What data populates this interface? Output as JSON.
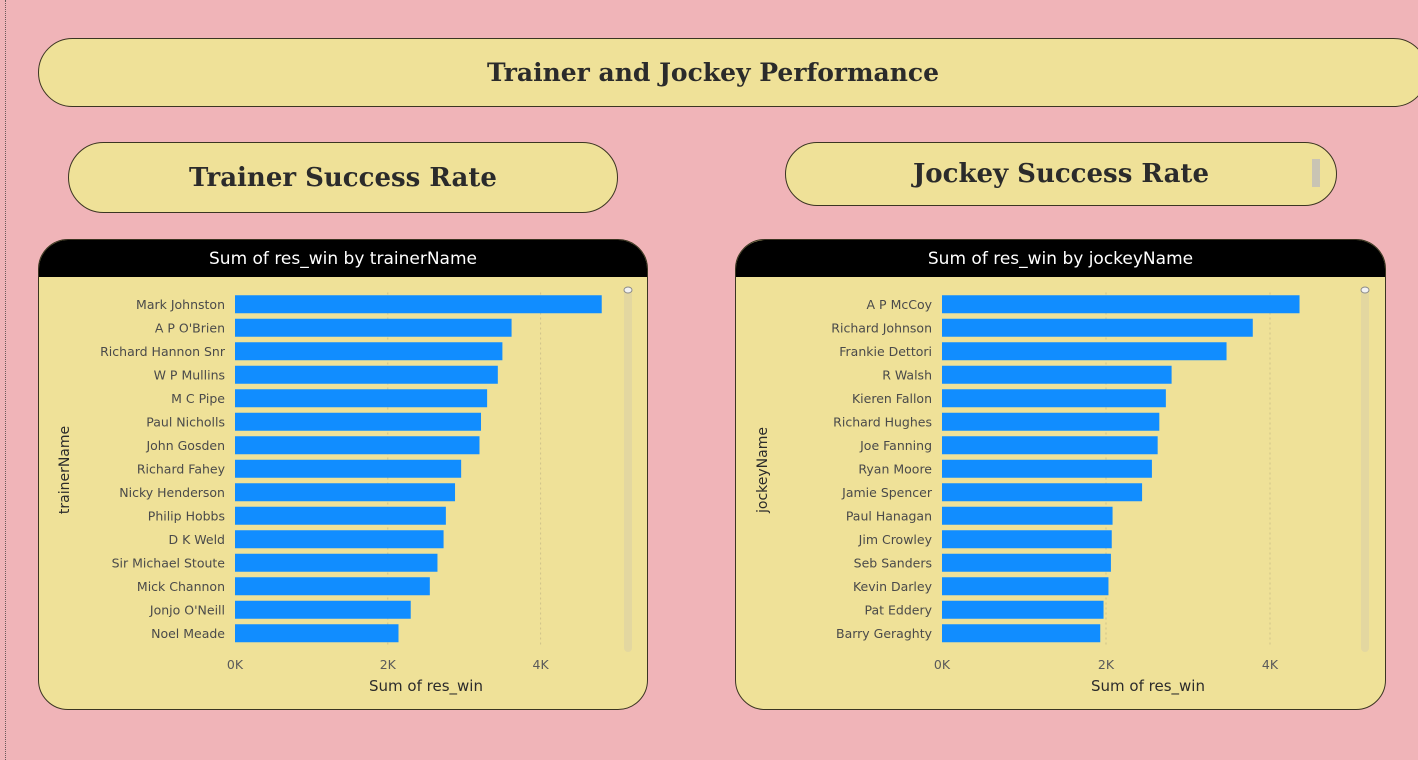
{
  "page": {
    "title": "Trainer and Jockey Performance"
  },
  "sections": {
    "trainer_title": "Trainer Success Rate",
    "jockey_title": "Jockey Success Rate"
  },
  "colors": {
    "background": "#f0b4b8",
    "panel": "#efe198",
    "bar": "#118dff",
    "header": "#000000"
  },
  "chart_data": [
    {
      "id": "trainer",
      "type": "bar",
      "orientation": "horizontal",
      "title": "Sum of res_win by trainerName",
      "xlabel": "Sum of res_win",
      "ylabel": "trainerName",
      "xlim": [
        0,
        5000
      ],
      "xticks": [
        "0K",
        "2K",
        "4K"
      ],
      "xtick_values": [
        0,
        2000,
        4000
      ],
      "grid": true,
      "categories": [
        "Mark Johnston",
        "A P O'Brien",
        "Richard Hannon Snr",
        "W P Mullins",
        "M C Pipe",
        "Paul Nicholls",
        "John Gosden",
        "Richard Fahey",
        "Nicky Henderson",
        "Philip Hobbs",
        "D K Weld",
        "Sir Michael Stoute",
        "Mick Channon",
        "Jonjo O'Neill",
        "Noel Meade"
      ],
      "values": [
        4800,
        3620,
        3500,
        3440,
        3300,
        3220,
        3200,
        2960,
        2880,
        2760,
        2730,
        2650,
        2550,
        2300,
        2140
      ]
    },
    {
      "id": "jockey",
      "type": "bar",
      "orientation": "horizontal",
      "title": "Sum of res_win by jockeyName",
      "xlabel": "Sum of res_win",
      "ylabel": "jockeyName",
      "xlim": [
        0,
        5000
      ],
      "xticks": [
        "0K",
        "2K",
        "4K"
      ],
      "xtick_values": [
        0,
        2000,
        4000
      ],
      "grid": true,
      "categories": [
        "A P McCoy",
        "Richard Johnson",
        "Frankie Dettori",
        "R Walsh",
        "Kieren Fallon",
        "Richard Hughes",
        "Joe Fanning",
        "Ryan Moore",
        "Jamie Spencer",
        "Paul Hanagan",
        "Jim Crowley",
        "Seb Sanders",
        "Kevin Darley",
        "Pat Eddery",
        "Barry Geraghty"
      ],
      "values": [
        4360,
        3790,
        3470,
        2800,
        2730,
        2650,
        2630,
        2560,
        2440,
        2080,
        2070,
        2060,
        2030,
        1970,
        1930
      ]
    }
  ]
}
